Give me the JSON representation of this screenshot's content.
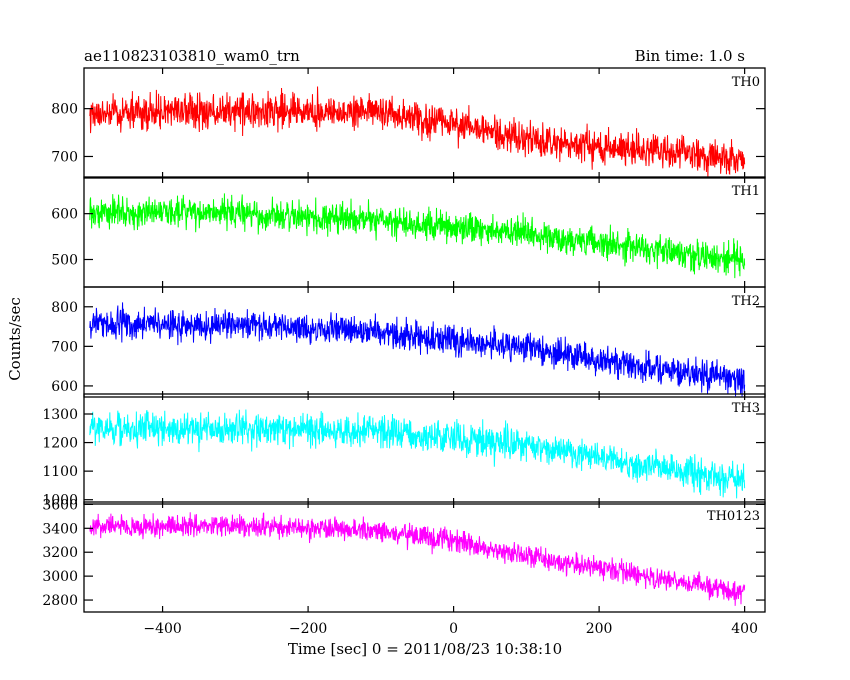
{
  "header": {
    "left_title": "ae110823103810_wam0_trn",
    "right_title": "Bin time: 1.0 s"
  },
  "chart_data": {
    "type": "line",
    "xlabel": "Time [sec] 0 = 2011/08/23 10:38:10",
    "ylabel": "Counts/sec",
    "xlim": [
      -508,
      428
    ],
    "x_ticks": [
      -400,
      -200,
      0,
      200,
      400
    ],
    "bin_time_s": 1.0,
    "x_start": -500,
    "x_end": 400,
    "grid": false,
    "panels": [
      {
        "name": "TH0",
        "color": "#ff0000",
        "ylim": [
          655,
          885
        ],
        "y_ticks": [
          700,
          800
        ],
        "trend": [
          [
            -500,
            790
          ],
          [
            -300,
            795
          ],
          [
            -100,
            795
          ],
          [
            0,
            770
          ],
          [
            100,
            735
          ],
          [
            200,
            720
          ],
          [
            300,
            710
          ],
          [
            400,
            690
          ]
        ],
        "noise_amplitude": 32,
        "ymin_clip": 655,
        "ymax_clip": 885
      },
      {
        "name": "TH1",
        "color": "#00ff00",
        "ylim": [
          440,
          680
        ],
        "y_ticks": [
          500,
          600
        ],
        "trend": [
          [
            -500,
            600
          ],
          [
            -300,
            600
          ],
          [
            -100,
            585
          ],
          [
            0,
            570
          ],
          [
            100,
            555
          ],
          [
            200,
            535
          ],
          [
            300,
            515
          ],
          [
            400,
            500
          ]
        ],
        "noise_amplitude": 30,
        "ymin_clip": 440,
        "ymax_clip": 680
      },
      {
        "name": "TH2",
        "color": "#0000ff",
        "ylim": [
          572,
          850
        ],
        "y_ticks": [
          600,
          700,
          800
        ],
        "trend": [
          [
            -500,
            755
          ],
          [
            -300,
            755
          ],
          [
            -100,
            735
          ],
          [
            0,
            715
          ],
          [
            100,
            695
          ],
          [
            200,
            665
          ],
          [
            300,
            640
          ],
          [
            400,
            615
          ]
        ],
        "noise_amplitude": 34,
        "ymin_clip": 572,
        "ymax_clip": 850
      },
      {
        "name": "TH3",
        "color": "#00ffff",
        "ylim": [
          985,
          1370
        ],
        "y_ticks": [
          1000,
          1100,
          1200,
          1300
        ],
        "trend": [
          [
            -500,
            1250
          ],
          [
            -300,
            1245
          ],
          [
            -100,
            1240
          ],
          [
            0,
            1215
          ],
          [
            100,
            1185
          ],
          [
            200,
            1150
          ],
          [
            300,
            1105
          ],
          [
            400,
            1065
          ]
        ],
        "noise_amplitude": 50,
        "ymin_clip": 985,
        "ymax_clip": 1370
      },
      {
        "name": "TH0123",
        "color": "#ff00ff",
        "ylim": [
          2700,
          3620
        ],
        "y_ticks": [
          2800,
          3000,
          3200,
          3400,
          3600
        ],
        "trend": [
          [
            -500,
            3415
          ],
          [
            -300,
            3420
          ],
          [
            -100,
            3380
          ],
          [
            0,
            3290
          ],
          [
            100,
            3170
          ],
          [
            200,
            3070
          ],
          [
            300,
            2960
          ],
          [
            400,
            2860
          ]
        ],
        "noise_amplitude": 80,
        "ymin_clip": 2700,
        "ymax_clip": 3620
      }
    ]
  }
}
